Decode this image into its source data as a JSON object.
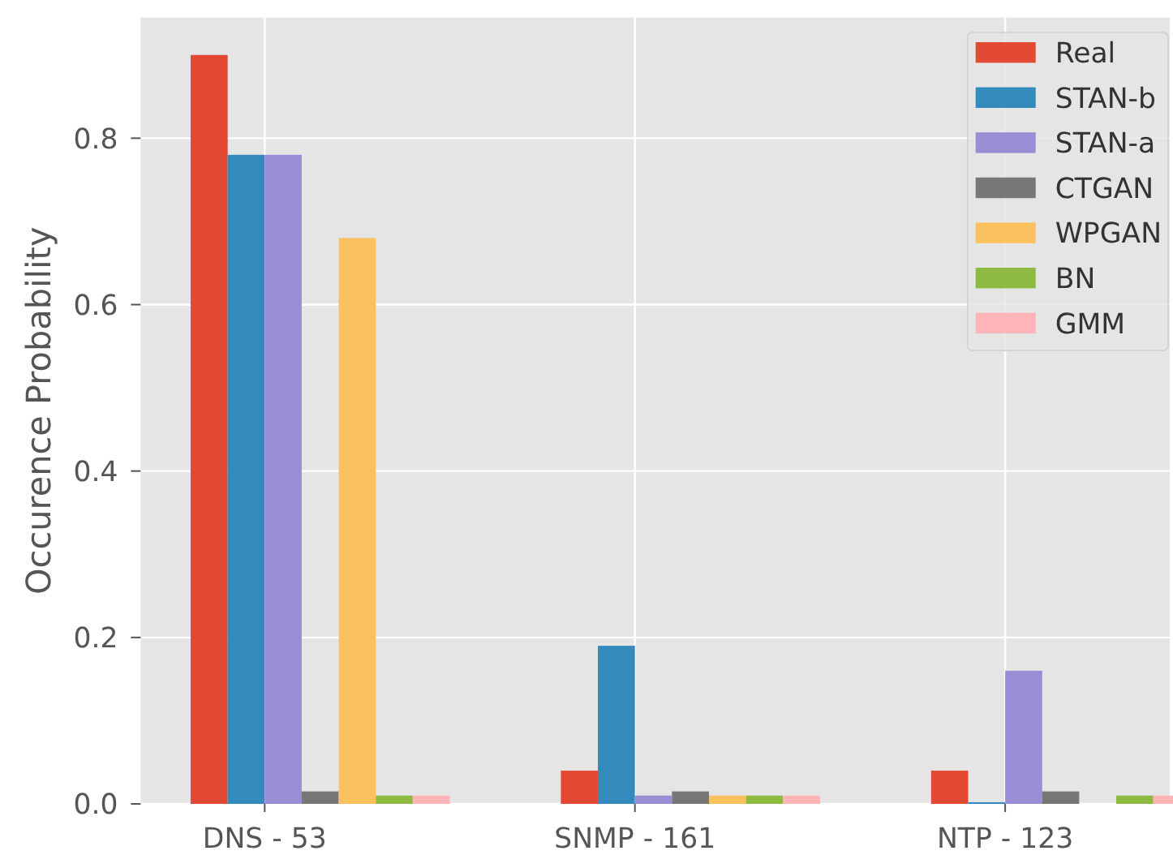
{
  "chart_data": {
    "type": "bar",
    "categories": [
      "DNS - 53",
      "SNMP - 161",
      "NTP - 123"
    ],
    "ylabel": "Occurence Probability",
    "ylim": [
      0,
      0.945
    ],
    "yticks": [
      {
        "value": 0,
        "label": "0.0"
      },
      0.2,
      0.4,
      0.6,
      0.8
    ],
    "grid": true,
    "legend": "top right",
    "series": [
      {
        "name": "Real",
        "color": "#e24a33",
        "values": [
          0.9,
          0.04,
          0.04
        ]
      },
      {
        "name": "STAN-b",
        "color": "#348abd",
        "values": [
          0.78,
          0.19,
          0.002
        ]
      },
      {
        "name": "STAN-a",
        "color": "#988ed5",
        "values": [
          0.78,
          0.01,
          0.16
        ]
      },
      {
        "name": "CTGAN",
        "color": "#777777",
        "values": [
          0.015,
          0.015,
          0.015
        ]
      },
      {
        "name": "WPGAN",
        "color": "#fbc15e",
        "values": [
          0.68,
          0.01,
          null
        ]
      },
      {
        "name": "BN",
        "color": "#8eba42",
        "values": [
          0.01,
          0.01,
          0.01
        ]
      },
      {
        "name": "GMM",
        "color": "#ffb5b8",
        "values": [
          0.01,
          0.01,
          0.01
        ]
      }
    ]
  }
}
